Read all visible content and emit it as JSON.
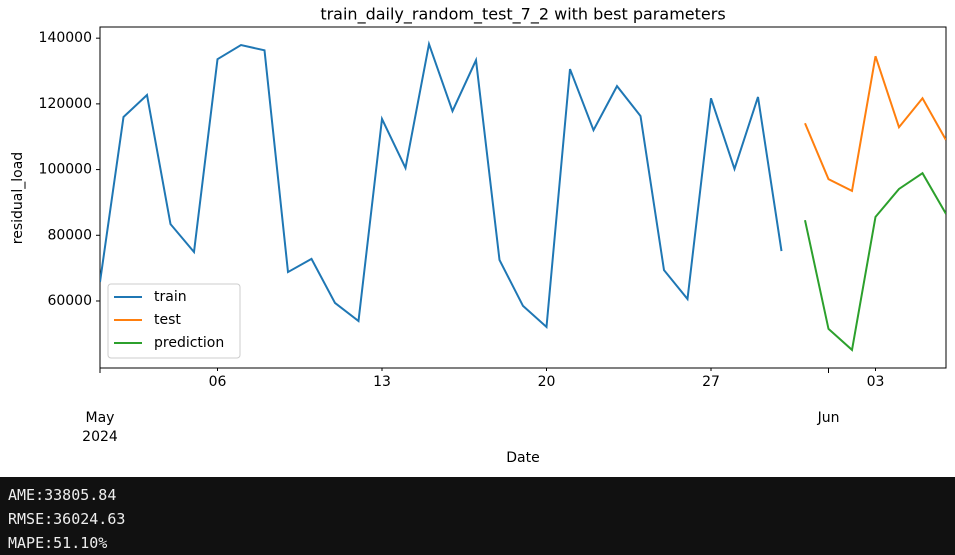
{
  "chart_data": {
    "type": "line",
    "title": "train_daily_random_test_7_2 with best parameters",
    "x_label": "Date",
    "y_label": "residual_load",
    "series": [
      {
        "name": "train",
        "color": "#1f77b4",
        "x": [
          "2024-05-01",
          "2024-05-02",
          "2024-05-03",
          "2024-05-04",
          "2024-05-05",
          "2024-05-06",
          "2024-05-07",
          "2024-05-08",
          "2024-05-09",
          "2024-05-10",
          "2024-05-11",
          "2024-05-12",
          "2024-05-13",
          "2024-05-14",
          "2024-05-15",
          "2024-05-16",
          "2024-05-17",
          "2024-05-18",
          "2024-05-19",
          "2024-05-20",
          "2024-05-21",
          "2024-05-22",
          "2024-05-23",
          "2024-05-24",
          "2024-05-25",
          "2024-05-26",
          "2024-05-27",
          "2024-05-28",
          "2024-05-29",
          "2024-05-30"
        ],
        "values": [
          65800,
          116000,
          122700,
          83400,
          74900,
          133600,
          137900,
          136300,
          68800,
          72800,
          59400,
          53900,
          115400,
          100500,
          138200,
          117800,
          133300,
          72500,
          58500,
          52100,
          130600,
          112000,
          125400,
          116300,
          69400,
          60600,
          121700,
          100200,
          122100,
          75200
        ]
      },
      {
        "name": "test",
        "color": "#ff7f0e",
        "x": [
          "2024-05-31",
          "2024-06-01",
          "2024-06-02",
          "2024-06-03",
          "2024-06-04",
          "2024-06-05",
          "2024-06-06"
        ],
        "values": [
          114100,
          97100,
          93500,
          134500,
          112900,
          121700,
          109000
        ]
      },
      {
        "name": "prediction",
        "color": "#2ca02c",
        "x": [
          "2024-05-31",
          "2024-06-01",
          "2024-06-02",
          "2024-06-03",
          "2024-06-04",
          "2024-06-05",
          "2024-06-06"
        ],
        "values": [
          84600,
          51500,
          45100,
          85600,
          94100,
          98900,
          86500
        ]
      }
    ],
    "xlim": [
      "2024-05-01",
      "2024-06-06"
    ],
    "ylim": [
      39600,
      143400
    ],
    "yticks": [
      60000,
      80000,
      100000,
      120000,
      140000
    ],
    "xticks": [
      {
        "value": "2024-05-06",
        "label": "06"
      },
      {
        "value": "2024-05-13",
        "label": "13"
      },
      {
        "value": "2024-05-20",
        "label": "20"
      },
      {
        "value": "2024-05-27",
        "label": "27"
      },
      {
        "value": "2024-06-03",
        "label": "03"
      }
    ],
    "xticks_major": [
      {
        "value": "2024-05-01",
        "label": "May",
        "sublabel": "2024"
      },
      {
        "value": "2024-06-01",
        "label": "Jun"
      }
    ],
    "legend": "lower left"
  },
  "output": {
    "lines": [
      "AME:33805.84",
      "RMSE:36024.63",
      "MAPE:51.10%"
    ]
  }
}
